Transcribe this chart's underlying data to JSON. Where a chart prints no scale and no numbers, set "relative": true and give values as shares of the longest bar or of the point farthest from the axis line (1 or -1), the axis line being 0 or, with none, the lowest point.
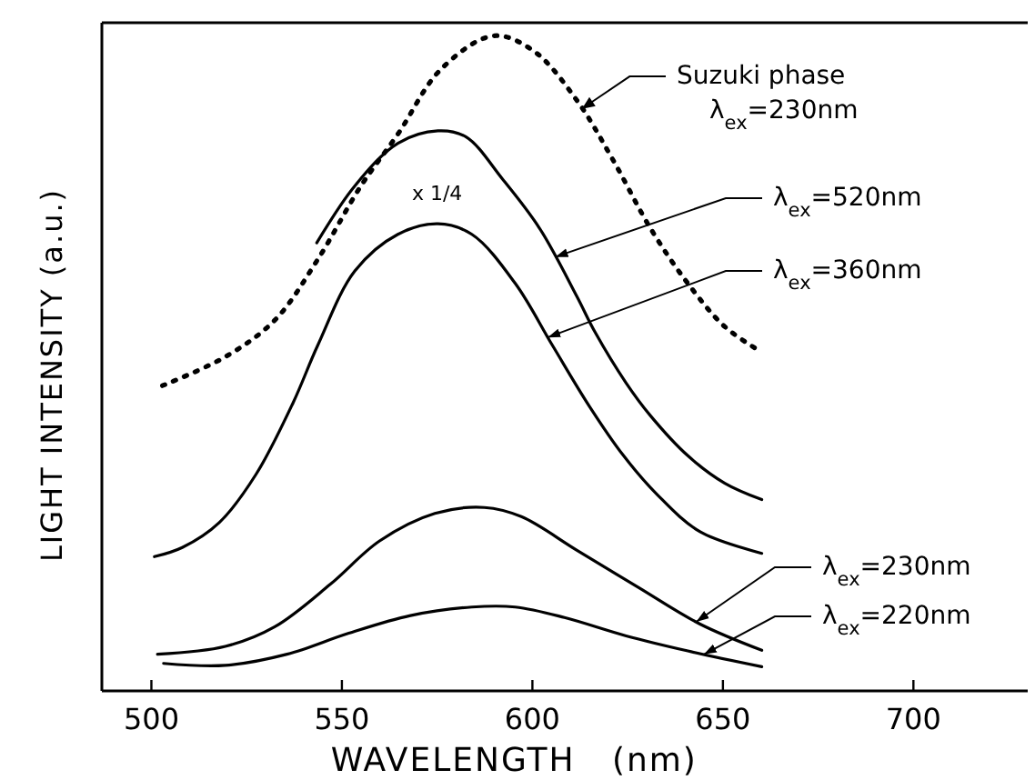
{
  "chart_data": {
    "type": "line",
    "relative": true,
    "xlabel": "WAVELENGTH   (nm)",
    "ylabel": "LIGHT INTENSITY (a.u.)",
    "xlim": [
      487,
      730
    ],
    "xticks": [
      500,
      550,
      600,
      650,
      700
    ],
    "grid": false,
    "legend": "right",
    "marker": "none",
    "annotations": [
      "x 1/4"
    ],
    "series": [
      {
        "name": "Suzuki phase λ$_{ex}$=230nm",
        "color": "#000000",
        "line_style": "dotted",
        "x": [
          502.9,
          519.4,
          532.4,
          543.7,
          555,
          564.7,
          576,
          589.8,
          600.3,
          611.6,
          621.3,
          631,
          640.8,
          650.5,
          660.2
        ],
        "values": [
          0.466,
          0.51,
          0.566,
          0.659,
          0.771,
          0.85,
          0.949,
          1,
          0.977,
          0.902,
          0.809,
          0.706,
          0.622,
          0.556,
          0.517
        ]
      },
      {
        "name": "λ$_{ex}$=520nm",
        "color": "#000000",
        "line_style": "solid",
        "x": [
          543.4,
          553.4,
          564.7,
          575.2,
          582.5,
          592.2,
          601.9,
          611.6,
          616.5,
          624.6,
          631,
          640.8,
          650.5,
          660.2
        ],
        "values": [
          0.684,
          0.771,
          0.836,
          0.855,
          0.846,
          0.781,
          0.706,
          0.603,
          0.547,
          0.47,
          0.42,
          0.359,
          0.317,
          0.292
        ]
      },
      {
        "name": "λ$_{ex}$=360nm",
        "color": "#000000",
        "line_style": "solid",
        "x": [
          500.8,
          508.1,
          517.8,
          527.5,
          537.2,
          543.7,
          553.4,
          564.7,
          575.2,
          584.1,
          595.5,
          605.2,
          614.9,
          623.8,
          632.7,
          644,
          660.2
        ],
        "values": [
          0.205,
          0.219,
          0.257,
          0.331,
          0.44,
          0.528,
          0.641,
          0.697,
          0.713,
          0.697,
          0.622,
          0.528,
          0.435,
          0.36,
          0.3,
          0.243,
          0.21
        ]
      },
      {
        "name": "λ$_{ex}$=230nm",
        "color": "#000000",
        "line_style": "solid",
        "x": [
          501.6,
          519.4,
          532.4,
          547,
          559.9,
          574.4,
          587.4,
          597.1,
          611.6,
          627.8,
          644,
          660.2
        ],
        "values": [
          0.056,
          0.068,
          0.098,
          0.163,
          0.229,
          0.271,
          0.28,
          0.266,
          0.215,
          0.158,
          0.102,
          0.062
        ]
      },
      {
        "name": "λ$_{ex}$=220nm",
        "color": "#000000",
        "line_style": "solid",
        "x": [
          503.2,
          519.4,
          535.6,
          551.8,
          568,
          584.1,
          595.5,
          608.4,
          624.6,
          640.8,
          660.2
        ],
        "values": [
          0.042,
          0.039,
          0.056,
          0.088,
          0.115,
          0.128,
          0.128,
          0.112,
          0.084,
          0.061,
          0.037
        ]
      }
    ]
  }
}
